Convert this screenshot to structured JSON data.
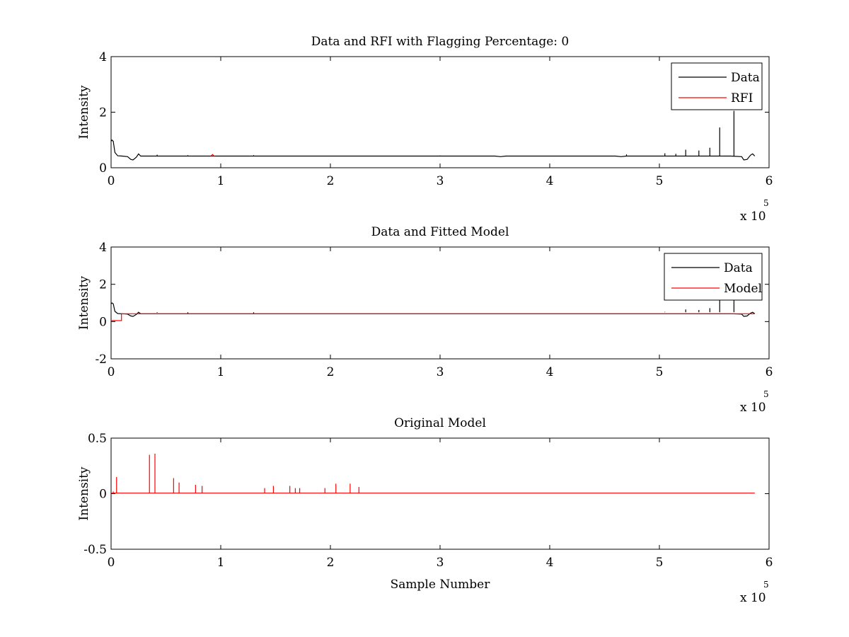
{
  "figure": {
    "background": "#ffffff",
    "colors": {
      "data": "#000000",
      "rfi": "#ff0000",
      "model": "#ff0000",
      "axis": "#000000"
    }
  },
  "chart_data": [
    {
      "type": "line",
      "title": "Data and RFI with Flagging Percentage: 0",
      "xlabel": "",
      "ylabel": "Intensity",
      "xlim": [
        0,
        600000
      ],
      "ylim": [
        0,
        4
      ],
      "xticks": [
        0,
        100000,
        200000,
        300000,
        400000,
        500000,
        600000
      ],
      "xtick_labels": [
        "0",
        "1",
        "2",
        "3",
        "4",
        "5",
        "6"
      ],
      "yticks": [
        0,
        2,
        4
      ],
      "ytick_labels": [
        "0",
        "2",
        "4"
      ],
      "x_multiplier": {
        "base": "x 10",
        "power": "5"
      },
      "grid": false,
      "legend": {
        "position": "top-right",
        "entries": [
          "Data",
          "RFI"
        ]
      },
      "series": [
        {
          "name": "Data",
          "color": "#000000",
          "baseline": 0.42,
          "points": [
            [
              0,
              0.95
            ],
            [
              800,
              1.0
            ],
            [
              2000,
              0.95
            ],
            [
              3500,
              0.55
            ],
            [
              6000,
              0.43
            ],
            [
              10000,
              0.42
            ],
            [
              15000,
              0.4
            ],
            [
              18000,
              0.3
            ],
            [
              20000,
              0.28
            ],
            [
              23000,
              0.38
            ],
            [
              25000,
              0.5
            ],
            [
              27000,
              0.42
            ],
            [
              30000,
              0.42
            ],
            [
              350000,
              0.42
            ],
            [
              355000,
              0.4
            ],
            [
              360000,
              0.42
            ],
            [
              460000,
              0.42
            ],
            [
              465000,
              0.4
            ],
            [
              470000,
              0.42
            ],
            [
              565000,
              0.42
            ],
            [
              575000,
              0.4
            ],
            [
              577000,
              0.28
            ],
            [
              580000,
              0.3
            ],
            [
              583000,
              0.45
            ],
            [
              585000,
              0.5
            ],
            [
              587000,
              0.42
            ]
          ],
          "spikes": [
            [
              555000,
              1.45
            ],
            [
              568000,
              2.05
            ],
            [
              546000,
              0.72
            ],
            [
              536000,
              0.62
            ],
            [
              524000,
              0.65
            ],
            [
              515000,
              0.5
            ],
            [
              505000,
              0.52
            ],
            [
              470000,
              0.48
            ],
            [
              42000,
              0.47
            ],
            [
              70000,
              0.45
            ],
            [
              130000,
              0.45
            ],
            [
              300000,
              0.44
            ]
          ]
        },
        {
          "name": "RFI",
          "color": "#ff0000",
          "points": [
            [
              91000,
              0.42
            ],
            [
              92500,
              0.48
            ],
            [
              94000,
              0.42
            ]
          ],
          "spikes": []
        }
      ]
    },
    {
      "type": "line",
      "title": "Data and Fitted Model",
      "xlabel": "",
      "ylabel": "Intensity",
      "xlim": [
        0,
        600000
      ],
      "ylim": [
        -2,
        4
      ],
      "xticks": [
        0,
        100000,
        200000,
        300000,
        400000,
        500000,
        600000
      ],
      "xtick_labels": [
        "0",
        "1",
        "2",
        "3",
        "4",
        "5",
        "6"
      ],
      "yticks": [
        -2,
        0,
        2,
        4
      ],
      "ytick_labels": [
        "-2",
        "0",
        "2",
        "4"
      ],
      "x_multiplier": {
        "base": "x 10",
        "power": "5"
      },
      "grid": false,
      "legend": {
        "position": "top-right",
        "entries": [
          "Data",
          "Model"
        ]
      },
      "series": [
        {
          "name": "Data",
          "color": "#000000",
          "points": [
            [
              0,
              0.95
            ],
            [
              800,
              1.0
            ],
            [
              2000,
              0.95
            ],
            [
              3500,
              0.55
            ],
            [
              6000,
              0.43
            ],
            [
              10000,
              0.42
            ],
            [
              15000,
              0.4
            ],
            [
              18000,
              0.3
            ],
            [
              20000,
              0.28
            ],
            [
              23000,
              0.38
            ],
            [
              25000,
              0.5
            ],
            [
              27000,
              0.42
            ],
            [
              30000,
              0.42
            ],
            [
              565000,
              0.42
            ],
            [
              575000,
              0.4
            ],
            [
              577000,
              0.28
            ],
            [
              580000,
              0.3
            ],
            [
              583000,
              0.45
            ],
            [
              585000,
              0.5
            ],
            [
              587000,
              0.42
            ]
          ],
          "spikes": [
            [
              555000,
              1.45
            ],
            [
              568000,
              2.05
            ],
            [
              546000,
              0.72
            ],
            [
              536000,
              0.62
            ],
            [
              524000,
              0.65
            ],
            [
              515000,
              0.5
            ],
            [
              505000,
              0.52
            ],
            [
              42000,
              0.47
            ],
            [
              70000,
              0.45
            ],
            [
              130000,
              0.45
            ]
          ]
        },
        {
          "name": "Model",
          "color": "#ff0000",
          "points": [
            [
              0,
              0.05
            ],
            [
              9500,
              0.05
            ],
            [
              9500,
              0.42
            ],
            [
              587000,
              0.42
            ]
          ],
          "spikes": []
        }
      ]
    },
    {
      "type": "line",
      "title": "Original Model",
      "xlabel": "Sample Number",
      "ylabel": "Intensity",
      "xlim": [
        0,
        600000
      ],
      "ylim": [
        -0.5,
        0.5
      ],
      "xticks": [
        0,
        100000,
        200000,
        300000,
        400000,
        500000,
        600000
      ],
      "xtick_labels": [
        "0",
        "1",
        "2",
        "3",
        "4",
        "5",
        "6"
      ],
      "yticks": [
        -0.5,
        0,
        0.5
      ],
      "ytick_labels": [
        "-0.5",
        "0",
        "0.5"
      ],
      "x_multiplier": {
        "base": "x 10",
        "power": "5"
      },
      "grid": false,
      "legend": null,
      "series": [
        {
          "name": "Model",
          "color": "#ff0000",
          "points": [
            [
              0,
              0.005
            ],
            [
              587000,
              0.005
            ]
          ],
          "spikes": [
            [
              2000,
              0.02
            ],
            [
              5000,
              0.15
            ],
            [
              35000,
              0.35
            ],
            [
              40000,
              0.36
            ],
            [
              57000,
              0.14
            ],
            [
              62000,
              0.1
            ],
            [
              77000,
              0.08
            ],
            [
              83000,
              0.07
            ],
            [
              140000,
              0.05
            ],
            [
              148000,
              0.07
            ],
            [
              163000,
              0.07
            ],
            [
              168000,
              0.05
            ],
            [
              172000,
              0.05
            ],
            [
              195000,
              0.05
            ],
            [
              205000,
              0.09
            ],
            [
              218000,
              0.09
            ],
            [
              226000,
              0.06
            ]
          ]
        }
      ]
    }
  ]
}
